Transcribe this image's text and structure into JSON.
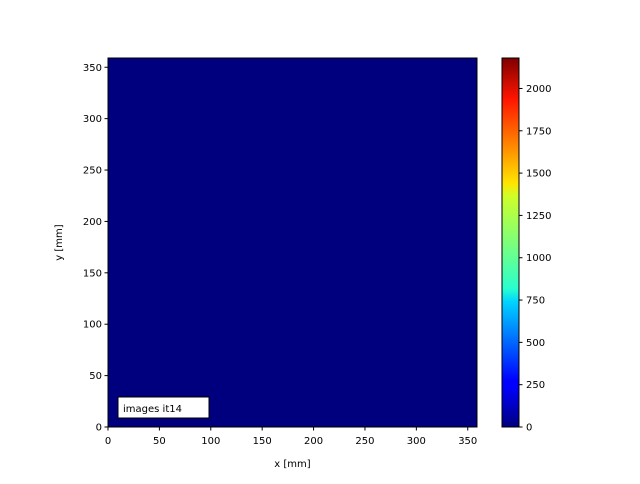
{
  "chart_data": {
    "type": "heatmap",
    "title": "",
    "xlabel": "x [mm]",
    "ylabel": "y [mm]",
    "xlim": [
      0,
      359
    ],
    "ylim": [
      0,
      359
    ],
    "xticks": [
      0,
      50,
      100,
      150,
      200,
      250,
      300,
      350
    ],
    "yticks": [
      0,
      50,
      100,
      150,
      200,
      250,
      300,
      350
    ],
    "values": "uniform 0 across whole field",
    "field_value": 0,
    "colormap": "jet",
    "colorbar": {
      "range": [
        0,
        2180
      ],
      "ticks": [
        0,
        250,
        500,
        750,
        1000,
        1250,
        1500,
        1750,
        2000
      ]
    },
    "annotation": "images it14",
    "colors": {
      "field": "#00007f"
    }
  }
}
